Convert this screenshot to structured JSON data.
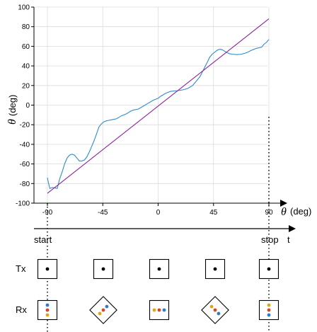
{
  "chart_data": {
    "type": "line",
    "xlabel_symbol": "θ",
    "xlabel_unit": "(deg)",
    "ylabel_symbol": "θ",
    "ylabel_unit": "(deg)",
    "xlim": [
      -90,
      90
    ],
    "ylim": [
      -100,
      100
    ],
    "x_ticks": [
      -90,
      -45,
      0,
      45,
      90
    ],
    "y_ticks": [
      -100,
      -80,
      -60,
      -40,
      -20,
      0,
      20,
      40,
      60,
      80,
      100
    ],
    "grid": true,
    "series": [
      {
        "color": "#2e8ccf",
        "x": [
          -90,
          -89,
          -88,
          -86,
          -82,
          -80,
          -78,
          -76,
          -74,
          -72,
          -70,
          -68,
          -66,
          -64,
          -62,
          -60,
          -58,
          -56,
          -54,
          -52,
          -50,
          -48,
          -46,
          -44,
          -42,
          -40,
          -38,
          -36,
          -34,
          -32,
          -30,
          -26,
          -22,
          -20,
          -16,
          -12,
          -8,
          -4,
          0,
          2,
          4,
          6,
          8,
          10,
          12,
          16,
          20,
          24,
          28,
          30,
          34,
          36,
          38,
          40,
          42,
          44,
          46,
          48,
          50,
          52,
          54,
          56,
          58,
          60,
          64,
          68,
          72,
          76,
          80,
          84,
          86,
          88,
          90
        ],
        "y": [
          -74,
          -80,
          -85,
          -84,
          -85,
          -75,
          -68,
          -60,
          -54,
          -51,
          -50,
          -51,
          -54,
          -57,
          -57,
          -56,
          -53,
          -48,
          -42,
          -36,
          -29,
          -22,
          -19,
          -17,
          -16,
          -15.5,
          -15,
          -14.5,
          -14,
          -12.5,
          -11,
          -9,
          -6,
          -5,
          -4,
          -1,
          2,
          5,
          7,
          9,
          10.5,
          12,
          13,
          14,
          14.3,
          14.8,
          15.5,
          17,
          20,
          23,
          29,
          34,
          39,
          44,
          49,
          52,
          54,
          56,
          57,
          56.5,
          55,
          53.5,
          52.5,
          52,
          51.5,
          52,
          53.5,
          56,
          58,
          59,
          62,
          64,
          67
        ]
      },
      {
        "color": "#8e1f9c",
        "x": [
          -90,
          90
        ],
        "y": [
          -90,
          88
        ]
      }
    ]
  },
  "timeline": {
    "start_label": "start",
    "stop_label": "stop",
    "axis_label": "t"
  },
  "rows": {
    "tx_label": "Tx",
    "rx_label": "Rx"
  },
  "dot_colors": {
    "blue": "#2e7cc8",
    "red": "#d24a24",
    "yellow": "#e0a516",
    "black": "#000000"
  }
}
